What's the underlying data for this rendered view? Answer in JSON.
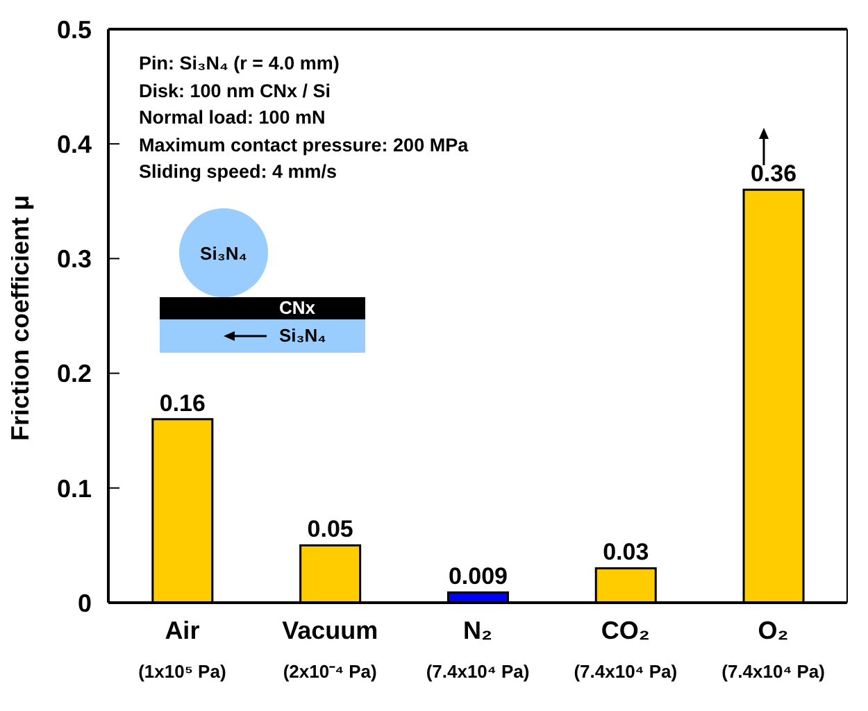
{
  "chart_data": {
    "type": "bar",
    "ylabel": "Friction coefficient  μ",
    "categories": [
      "Air\n(1x10⁵ Pa)",
      "Vacuum\n(2x10⁻⁴ Pa)",
      "N₂\n(7.4x10⁴ Pa)",
      "CO₂\n(7.4x10⁴ Pa)",
      "O₂\n(7.4x10⁴ Pa)"
    ],
    "values": [
      0.16,
      0.05,
      0.009,
      0.03,
      0.36
    ],
    "colors": [
      "#ffcc00",
      "#ffcc00",
      "#0000ff",
      "#ffcc00",
      "#ffcc00"
    ],
    "data_labels": true,
    "ylim": [
      0,
      0.5
    ],
    "yticks": [
      0,
      0.1,
      0.2,
      0.3,
      0.4,
      0.5
    ],
    "grid": false,
    "legend": false,
    "annotations": [
      "Pin: Si₃N₄ (r = 4.0 mm)",
      "Disk: 100 nm CNx / Si",
      "Normal load: 100 mN",
      "Maximum contact pressure: 200 MPa",
      "Sliding speed: 4 mm/s",
      "Si₃N₄",
      "CNx",
      "Si₃N₄"
    ]
  }
}
